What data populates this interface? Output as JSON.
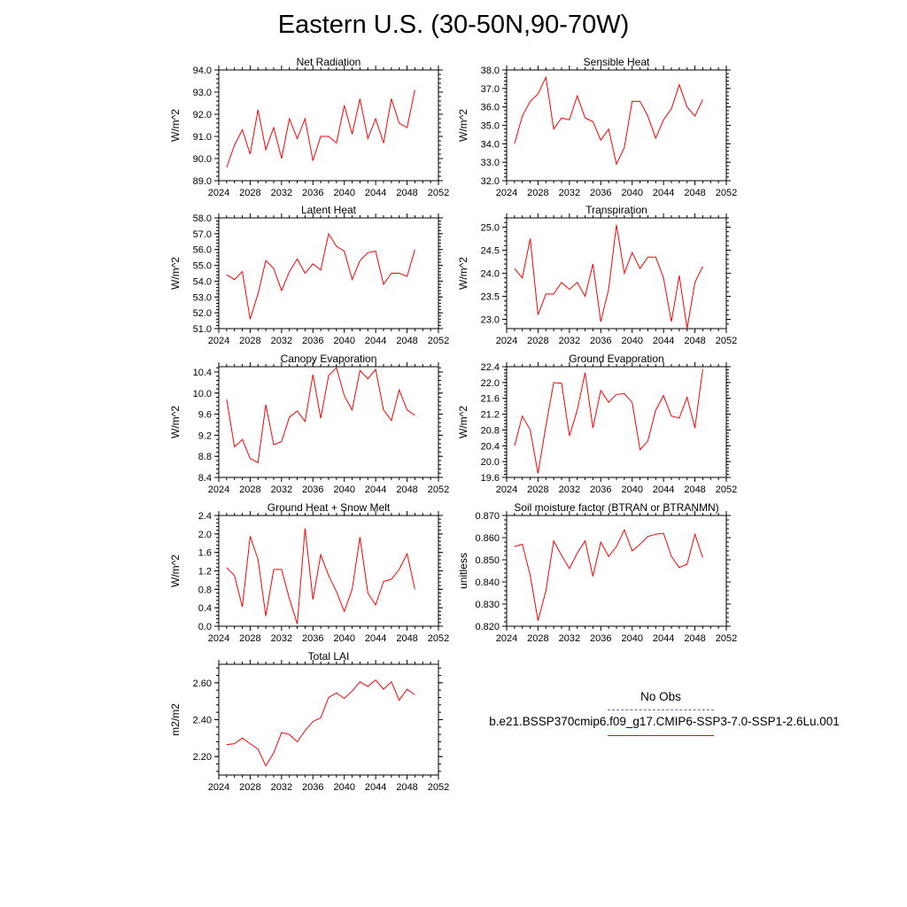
{
  "main_title": "Eastern U.S. (30-50N,90-70W)",
  "legend": {
    "title": "No Obs",
    "series_name": "b.e21.BSSP370cmip6.f09_g17.CMIP6-SSP3-7.0-SSP1-2.6Lu.001",
    "line_color": "#ff0000",
    "obs_color": "#6670a8"
  },
  "chart_data": [
    {
      "type": "line",
      "title": "Net Radiation",
      "ylabel": "W/m^2",
      "xlim": [
        2024,
        2052
      ],
      "ylim": [
        89.0,
        94.0
      ],
      "xticks": [
        2024,
        2028,
        2032,
        2036,
        2040,
        2044,
        2048,
        2052
      ],
      "yticks": [
        "89.0",
        "90.0",
        "91.0",
        "92.0",
        "93.0",
        "94.0"
      ],
      "x": [
        2025,
        2026,
        2027,
        2028,
        2029,
        2030,
        2031,
        2032,
        2033,
        2034,
        2035,
        2036,
        2037,
        2038,
        2039,
        2040,
        2041,
        2042,
        2043,
        2044,
        2045,
        2046,
        2047,
        2048,
        2049
      ],
      "series": [
        {
          "values": [
            89.6,
            90.6,
            91.3,
            90.2,
            92.2,
            90.4,
            91.4,
            90.0,
            91.8,
            90.9,
            91.8,
            89.9,
            91.0,
            91.0,
            90.7,
            92.4,
            91.1,
            92.7,
            90.9,
            91.8,
            90.7,
            92.7,
            91.6,
            91.4,
            93.1
          ]
        }
      ]
    },
    {
      "type": "line",
      "title": "Sensible Heat",
      "ylabel": "W/m^2",
      "xlim": [
        2024,
        2052
      ],
      "ylim": [
        32.0,
        38.0
      ],
      "xticks": [
        2024,
        2028,
        2032,
        2036,
        2040,
        2044,
        2048,
        2052
      ],
      "yticks": [
        "32.0",
        "33.0",
        "34.0",
        "35.0",
        "36.0",
        "37.0",
        "38.0"
      ],
      "x": [
        2025,
        2026,
        2027,
        2028,
        2029,
        2030,
        2031,
        2032,
        2033,
        2034,
        2035,
        2036,
        2037,
        2038,
        2039,
        2040,
        2041,
        2042,
        2043,
        2044,
        2045,
        2046,
        2047,
        2048,
        2049
      ],
      "series": [
        {
          "values": [
            34.0,
            35.5,
            36.3,
            36.7,
            37.6,
            34.8,
            35.4,
            35.3,
            36.6,
            35.4,
            35.2,
            34.2,
            34.8,
            32.9,
            33.8,
            36.3,
            36.3,
            35.5,
            34.3,
            35.3,
            35.9,
            37.2,
            36.0,
            35.5,
            36.4
          ]
        }
      ]
    },
    {
      "type": "line",
      "title": "Latent Heat",
      "ylabel": "W/m^2",
      "xlim": [
        2024,
        2052
      ],
      "ylim": [
        51.0,
        58.0
      ],
      "xticks": [
        2024,
        2028,
        2032,
        2036,
        2040,
        2044,
        2048,
        2052
      ],
      "yticks": [
        "51.0",
        "52.0",
        "53.0",
        "54.0",
        "55.0",
        "56.0",
        "57.0",
        "58.0"
      ],
      "x": [
        2025,
        2026,
        2027,
        2028,
        2029,
        2030,
        2031,
        2032,
        2033,
        2034,
        2035,
        2036,
        2037,
        2038,
        2039,
        2040,
        2041,
        2042,
        2043,
        2044,
        2045,
        2046,
        2047,
        2048,
        2049
      ],
      "series": [
        {
          "values": [
            54.4,
            54.1,
            54.6,
            51.6,
            53.2,
            55.3,
            54.8,
            53.4,
            54.6,
            55.4,
            54.5,
            55.1,
            54.7,
            57.0,
            56.2,
            55.9,
            54.1,
            55.3,
            55.8,
            55.9,
            53.8,
            54.5,
            54.5,
            54.3,
            56.0
          ]
        }
      ]
    },
    {
      "type": "line",
      "title": "Transpiration",
      "ylabel": "W/m^2",
      "xlim": [
        2024,
        2052
      ],
      "ylim": [
        22.8,
        25.2
      ],
      "xticks": [
        2024,
        2028,
        2032,
        2036,
        2040,
        2044,
        2048,
        2052
      ],
      "yticks": [
        "23.0",
        "23.5",
        "24.0",
        "24.5",
        "25.0"
      ],
      "x": [
        2025,
        2026,
        2027,
        2028,
        2029,
        2030,
        2031,
        2032,
        2033,
        2034,
        2035,
        2036,
        2037,
        2038,
        2039,
        2040,
        2041,
        2042,
        2043,
        2044,
        2045,
        2046,
        2047,
        2048,
        2049
      ],
      "series": [
        {
          "values": [
            24.1,
            23.9,
            24.75,
            23.1,
            23.55,
            23.55,
            23.8,
            23.65,
            23.8,
            23.5,
            24.2,
            22.95,
            23.65,
            25.05,
            24.0,
            24.45,
            24.1,
            24.35,
            24.35,
            23.9,
            22.95,
            23.95,
            22.8,
            23.8,
            24.15
          ]
        }
      ]
    },
    {
      "type": "line",
      "title": "Canopy Evaporation",
      "ylabel": "W/m^2",
      "xlim": [
        2024,
        2052
      ],
      "ylim": [
        8.4,
        10.5
      ],
      "xticks": [
        2024,
        2028,
        2032,
        2036,
        2040,
        2044,
        2048,
        2052
      ],
      "yticks": [
        "8.4",
        "8.8",
        "9.2",
        "9.6",
        "10.0",
        "10.4"
      ],
      "x": [
        2025,
        2026,
        2027,
        2028,
        2029,
        2030,
        2031,
        2032,
        2033,
        2034,
        2035,
        2036,
        2037,
        2038,
        2039,
        2040,
        2041,
        2042,
        2043,
        2044,
        2045,
        2046,
        2047,
        2048,
        2049
      ],
      "series": [
        {
          "values": [
            9.88,
            8.98,
            9.12,
            8.76,
            8.68,
            9.78,
            9.02,
            9.08,
            9.54,
            9.66,
            9.46,
            10.35,
            9.52,
            10.33,
            10.48,
            9.95,
            9.68,
            10.43,
            10.27,
            10.45,
            9.68,
            9.48,
            10.06,
            9.68,
            9.58
          ]
        }
      ]
    },
    {
      "type": "line",
      "title": "Ground Evaporation",
      "ylabel": "W/m^2",
      "xlim": [
        2024,
        2052
      ],
      "ylim": [
        19.6,
        22.4
      ],
      "xticks": [
        2024,
        2028,
        2032,
        2036,
        2040,
        2044,
        2048,
        2052
      ],
      "yticks": [
        "19.6",
        "20.0",
        "20.4",
        "20.8",
        "21.2",
        "21.6",
        "22.0",
        "22.4"
      ],
      "x": [
        2025,
        2026,
        2027,
        2028,
        2029,
        2030,
        2031,
        2032,
        2033,
        2034,
        2035,
        2036,
        2037,
        2038,
        2039,
        2040,
        2041,
        2042,
        2043,
        2044,
        2045,
        2046,
        2047,
        2048,
        2049
      ],
      "series": [
        {
          "values": [
            20.4,
            21.15,
            20.8,
            19.7,
            20.9,
            22.0,
            21.98,
            20.65,
            21.3,
            22.25,
            20.85,
            21.8,
            21.5,
            21.7,
            21.72,
            21.5,
            20.3,
            20.52,
            21.3,
            21.67,
            21.15,
            21.1,
            21.63,
            20.85,
            22.34
          ]
        }
      ]
    },
    {
      "type": "line",
      "title": "Ground Heat + Snow Melt",
      "ylabel": "W/m^2",
      "xlim": [
        2024,
        2052
      ],
      "ylim": [
        0.0,
        2.4
      ],
      "xticks": [
        2024,
        2028,
        2032,
        2036,
        2040,
        2044,
        2048,
        2052
      ],
      "yticks": [
        "0.0",
        "0.4",
        "0.8",
        "1.2",
        "1.6",
        "2.0",
        "2.4"
      ],
      "x": [
        2025,
        2026,
        2027,
        2028,
        2029,
        2030,
        2031,
        2032,
        2033,
        2034,
        2035,
        2036,
        2037,
        2038,
        2039,
        2040,
        2041,
        2042,
        2043,
        2044,
        2045,
        2046,
        2047,
        2048,
        2049
      ],
      "series": [
        {
          "values": [
            1.27,
            1.1,
            0.42,
            1.95,
            1.45,
            0.22,
            1.23,
            1.23,
            0.6,
            0.05,
            2.12,
            0.58,
            1.55,
            1.1,
            0.75,
            0.32,
            0.8,
            1.93,
            0.72,
            0.46,
            0.97,
            1.02,
            1.23,
            1.57,
            0.8
          ]
        }
      ]
    },
    {
      "type": "line",
      "title": "Soil moisture factor (BTRAN or BTRANMN)",
      "ylabel": "unitless",
      "xlim": [
        2024,
        2052
      ],
      "ylim": [
        0.82,
        0.87
      ],
      "xticks": [
        2024,
        2028,
        2032,
        2036,
        2040,
        2044,
        2048,
        2052
      ],
      "yticks": [
        "0.820",
        "0.830",
        "0.840",
        "0.850",
        "0.860",
        "0.870"
      ],
      "x": [
        2025,
        2026,
        2027,
        2028,
        2029,
        2030,
        2031,
        2032,
        2033,
        2034,
        2035,
        2036,
        2037,
        2038,
        2039,
        2040,
        2041,
        2042,
        2043,
        2044,
        2045,
        2046,
        2047,
        2048,
        2049
      ],
      "series": [
        {
          "values": [
            0.856,
            0.857,
            0.843,
            0.8225,
            0.836,
            0.8585,
            0.852,
            0.846,
            0.853,
            0.8585,
            0.8425,
            0.858,
            0.8515,
            0.856,
            0.8635,
            0.854,
            0.857,
            0.8605,
            0.8615,
            0.862,
            0.8515,
            0.8465,
            0.848,
            0.8615,
            0.851
          ]
        }
      ]
    },
    {
      "type": "line",
      "title": "Total LAI",
      "ylabel": "m2/m2",
      "xlim": [
        2024,
        2052
      ],
      "ylim": [
        2.1,
        2.7
      ],
      "xticks": [
        2024,
        2028,
        2032,
        2036,
        2040,
        2044,
        2048,
        2052
      ],
      "yticks": [
        "2.20",
        "2.40",
        "2.60"
      ],
      "x": [
        2025,
        2026,
        2027,
        2028,
        2029,
        2030,
        2031,
        2032,
        2033,
        2034,
        2035,
        2036,
        2037,
        2038,
        2039,
        2040,
        2041,
        2042,
        2043,
        2044,
        2045,
        2046,
        2047,
        2048,
        2049
      ],
      "series": [
        {
          "values": [
            2.265,
            2.27,
            2.3,
            2.27,
            2.24,
            2.15,
            2.22,
            2.33,
            2.32,
            2.28,
            2.34,
            2.39,
            2.41,
            2.52,
            2.545,
            2.515,
            2.555,
            2.605,
            2.58,
            2.615,
            2.565,
            2.605,
            2.505,
            2.565,
            2.535
          ]
        }
      ]
    }
  ]
}
